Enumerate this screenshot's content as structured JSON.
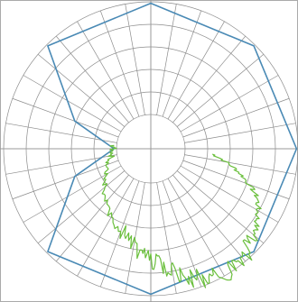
{
  "chart_data": {
    "type": "polar",
    "title": "",
    "angle_ticks_deg": 10,
    "radial_rings": 5,
    "inner_hole": true,
    "grid": true,
    "legend": "none",
    "series": [
      {
        "color": "#4a8ab5",
        "shape": "closed polygon",
        "points": [
          {
            "theta": 0,
            "r": 0.99
          },
          {
            "theta": 45,
            "r": 0.99
          },
          {
            "theta": 90,
            "r": 0.99
          },
          {
            "theta": 135,
            "r": 0.99
          },
          {
            "theta": 160,
            "r": 0.55
          },
          {
            "theta": 180,
            "r": 0.25
          },
          {
            "theta": 200,
            "r": 0.55
          },
          {
            "theta": 225,
            "r": 0.99
          },
          {
            "theta": 270,
            "r": 0.99
          },
          {
            "theta": 315,
            "r": 0.99
          }
        ]
      },
      {
        "color": "#6abf3c",
        "shape": "noisy open curve",
        "points": [
          {
            "theta": 5,
            "r": 0.42
          },
          {
            "theta": 15,
            "r": 0.62
          },
          {
            "theta": 25,
            "r": 0.8
          },
          {
            "theta": 35,
            "r": 0.88
          },
          {
            "theta": 45,
            "r": 0.95
          },
          {
            "theta": 55,
            "r": 0.98
          },
          {
            "theta": 65,
            "r": 0.98
          },
          {
            "theta": 75,
            "r": 0.9
          },
          {
            "theta": 85,
            "r": 0.8
          },
          {
            "theta": 95,
            "r": 0.73
          },
          {
            "theta": 110,
            "r": 0.6
          },
          {
            "theta": 130,
            "r": 0.48
          },
          {
            "theta": 150,
            "r": 0.34
          },
          {
            "theta": 170,
            "r": 0.27
          },
          {
            "theta": 185,
            "r": 0.25
          }
        ]
      }
    ],
    "colors": {
      "grid": "#8c8c8c",
      "axes": "#999999",
      "frame": "#aaaaaa",
      "background": "#ffffff"
    }
  }
}
